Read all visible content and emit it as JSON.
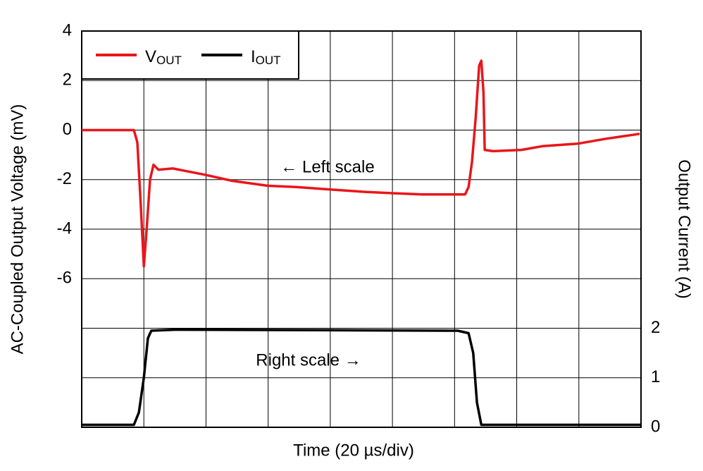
{
  "chart_data": {
    "type": "line",
    "x_label": "Time (20 µs/div)",
    "y_label": "AC-Coupled Output Voltage (mV)",
    "y2_label": "Output Current (A)",
    "annotations": [
      "← Left scale",
      "Right scale →"
    ],
    "xlim": [
      0,
      180
    ],
    "xticks": [
      0,
      20,
      40,
      60,
      80,
      100,
      120,
      140,
      160,
      180
    ],
    "ylim": [
      -12,
      4
    ],
    "yticks": [
      -6,
      -4,
      -2,
      0,
      2,
      4
    ],
    "y2lim": [
      0,
      8
    ],
    "y2ticks": [
      0,
      1,
      2
    ],
    "grid": true,
    "legend": "upper left",
    "series": [
      {
        "name": "VOUT",
        "color": "#e8161b",
        "x": [
          0,
          16.8,
          17.9,
          19,
          20,
          20.9,
          22,
          23.1,
          24.7,
          29.3,
          39.5,
          48.5,
          60,
          69,
          80,
          91.6,
          100.7,
          109.7,
          123.4,
          124.5,
          125.6,
          126.8,
          127.9,
          128.6,
          129.3,
          129.7,
          132.4,
          141.5,
          148.3,
          159.6,
          168.7,
          179.6
        ],
        "values": [
          0,
          0,
          -0.5,
          -3,
          -5.5,
          -4,
          -2,
          -1.4,
          -1.6,
          -1.55,
          -1.8,
          -2.05,
          -2.25,
          -2.3,
          -2.4,
          -2.5,
          -2.55,
          -2.6,
          -2.6,
          -2.3,
          -1.3,
          0.5,
          2.6,
          2.8,
          1.5,
          -0.8,
          -0.85,
          -0.8,
          -0.65,
          -0.55,
          -0.35,
          -0.15
        ]
      },
      {
        "name": "IOUT",
        "color": "#000000",
        "axis": "y2",
        "x": [
          0,
          16.8,
          18.4,
          20,
          21.3,
          22.4,
          30,
          78,
          121,
          124.5,
          126,
          127.2,
          128.6,
          180
        ],
        "values": [
          0.05,
          0.05,
          0.3,
          1.0,
          1.8,
          1.95,
          1.97,
          1.96,
          1.95,
          1.9,
          1.5,
          0.5,
          0.05,
          0.05
        ]
      }
    ]
  }
}
